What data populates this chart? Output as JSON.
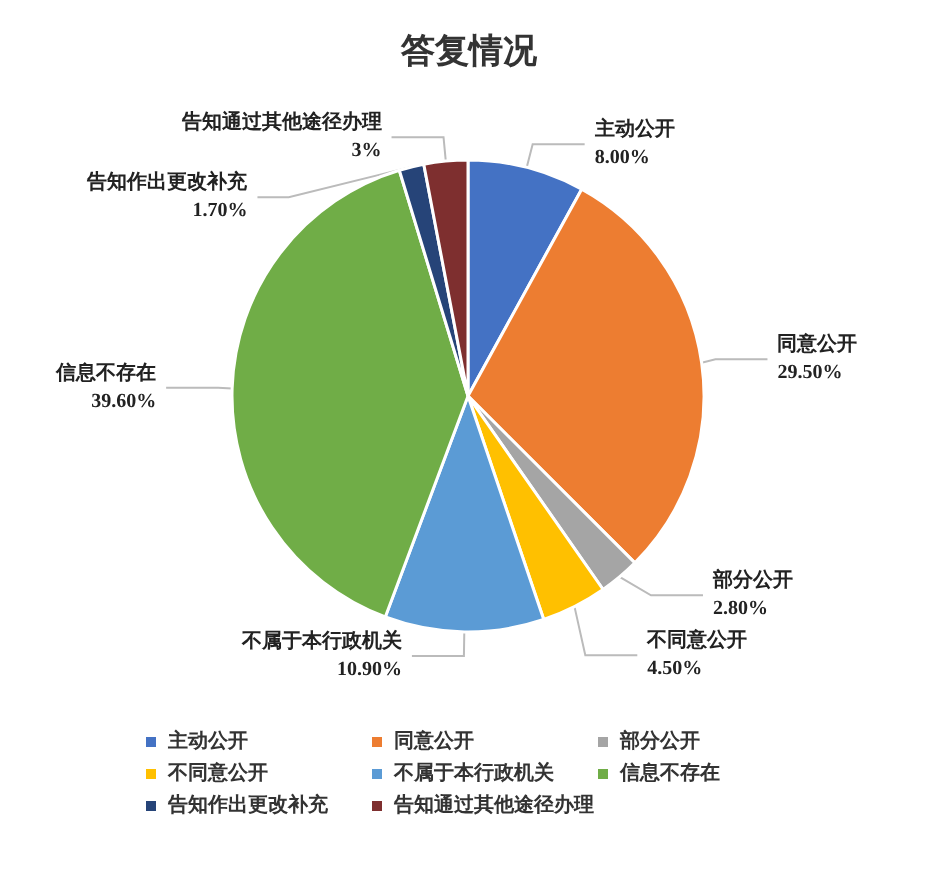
{
  "chart_data": {
    "type": "pie",
    "title": "答复情况",
    "categories": [
      "主动公开",
      "同意公开",
      "部分公开",
      "不同意公开",
      "不属于本行政机关",
      "信息不存在",
      "告知作出更改补充",
      "告知通过其他途径办理"
    ],
    "values": [
      8.0,
      29.5,
      2.8,
      4.5,
      10.9,
      39.6,
      1.7,
      3
    ],
    "value_labels": [
      "8.00%",
      "29.50%",
      "2.80%",
      "4.50%",
      "10.90%",
      "39.60%",
      "1.70%",
      "3%"
    ],
    "colors": [
      "#4472c4",
      "#ed7d31",
      "#a5a5a5",
      "#ffc000",
      "#5b9bd5",
      "#70ad47",
      "#264478",
      "#7e2f2f"
    ],
    "legend": "bottom"
  }
}
